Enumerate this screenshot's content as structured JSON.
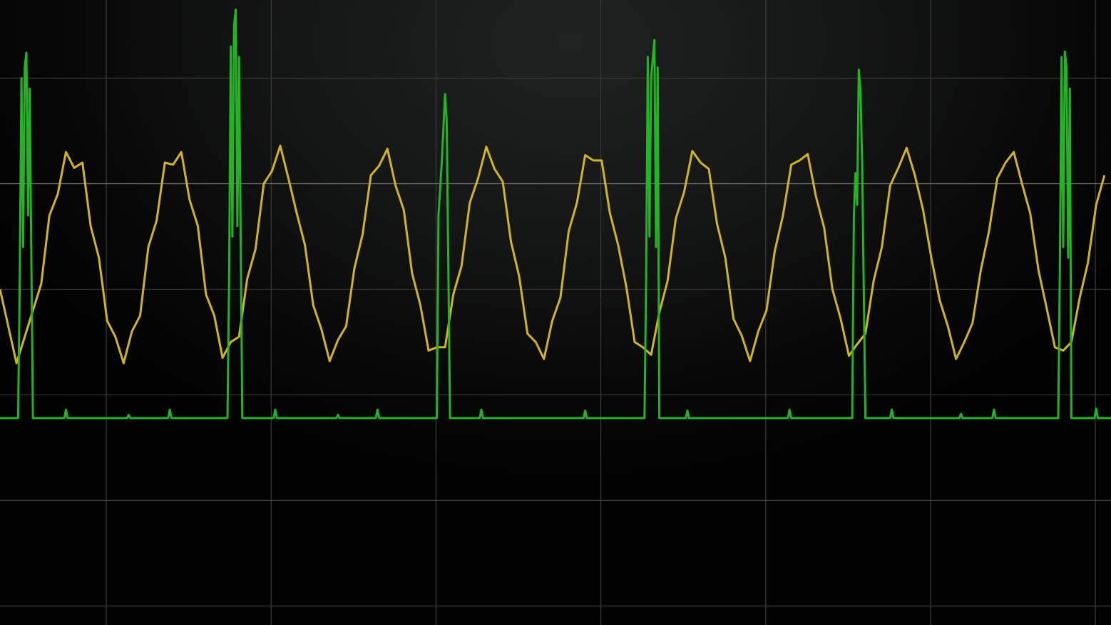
{
  "chart_data": {
    "type": "line",
    "title": "",
    "xlabel": "",
    "ylabel": "",
    "xlim": [
      0,
      6.74
    ],
    "ylim": [
      -4.18,
      1.74
    ],
    "grid": true,
    "background": "#141515",
    "grid_color": "#3a3a3a",
    "center_line_color": "#7a7a7a",
    "series": [
      {
        "color": "#d2b421",
        "x_start": 0,
        "x_step": 0.05,
        "values": [
          -1.0,
          -1.35,
          -1.7,
          -1.45,
          -1.2,
          -0.95,
          -0.3,
          -0.1,
          0.3,
          0.15,
          0.2,
          -0.4,
          -0.7,
          -1.3,
          -1.45,
          -1.7,
          -1.4,
          -1.25,
          -0.6,
          -0.35,
          0.2,
          0.18,
          0.3,
          -0.15,
          -0.4,
          -1.05,
          -1.25,
          -1.65,
          -1.5,
          -1.45,
          -0.9,
          -0.62,
          0.0,
          0.12,
          0.36,
          0.05,
          -0.28,
          -0.58,
          -1.15,
          -1.38,
          -1.68,
          -1.48,
          -1.35,
          -0.8,
          -0.48,
          0.08,
          0.17,
          0.33,
          -0.02,
          -0.25,
          -0.85,
          -1.15,
          -1.58,
          -1.55,
          -1.55,
          -1.05,
          -0.78,
          -0.18,
          0.05,
          0.35,
          0.14,
          0.02,
          -0.55,
          -0.88,
          -1.42,
          -1.5,
          -1.66,
          -1.3,
          -1.08,
          -0.45,
          -0.18,
          0.27,
          0.22,
          0.22,
          -0.28,
          -0.58,
          -0.98,
          -1.5,
          -1.55,
          -1.62,
          -1.22,
          -0.92,
          -0.33,
          -0.08,
          0.31,
          0.2,
          0.14,
          -0.38,
          -0.7,
          -1.28,
          -1.44,
          -1.68,
          -1.4,
          -1.2,
          -0.64,
          -0.3,
          0.18,
          0.22,
          0.28,
          -0.12,
          -0.42,
          -1.0,
          -1.28,
          -1.63,
          -1.52,
          -1.42,
          -0.92,
          -0.6,
          -0.02,
          0.15,
          0.34,
          0.08,
          -0.25,
          -0.7,
          -1.1,
          -1.35,
          -1.66,
          -1.5,
          -1.32,
          -0.82,
          -0.45,
          0.05,
          0.2,
          0.3,
          0.0,
          -0.28,
          -0.82,
          -1.18,
          -1.55,
          -1.58,
          -1.5,
          -1.08,
          -0.75,
          -0.2,
          0.08
        ]
      },
      {
        "color": "#22b422",
        "points": [
          [
            0,
            -2.22
          ],
          [
            0.11,
            -2.22
          ],
          [
            0.12,
            -0.9
          ],
          [
            0.13,
            1.0
          ],
          [
            0.14,
            -0.6
          ],
          [
            0.15,
            1.1
          ],
          [
            0.16,
            1.24
          ],
          [
            0.17,
            -0.3
          ],
          [
            0.18,
            0.9
          ],
          [
            0.2,
            -2.22
          ],
          [
            0.39,
            -2.22
          ],
          [
            0.4,
            -2.14
          ],
          [
            0.41,
            -2.22
          ],
          [
            0.77,
            -2.22
          ],
          [
            0.78,
            -2.19
          ],
          [
            0.79,
            -2.22
          ],
          [
            1.02,
            -2.22
          ],
          [
            1.03,
            -2.14
          ],
          [
            1.04,
            -2.22
          ],
          [
            1.38,
            -2.22
          ],
          [
            1.39,
            -0.9
          ],
          [
            1.4,
            1.3
          ],
          [
            1.41,
            -0.5
          ],
          [
            1.42,
            1.5
          ],
          [
            1.43,
            1.65
          ],
          [
            1.44,
            -0.4
          ],
          [
            1.45,
            1.2
          ],
          [
            1.47,
            -2.22
          ],
          [
            1.66,
            -2.22
          ],
          [
            1.67,
            -2.14
          ],
          [
            1.68,
            -2.22
          ],
          [
            2.04,
            -2.22
          ],
          [
            2.05,
            -2.19
          ],
          [
            2.06,
            -2.22
          ],
          [
            2.28,
            -2.22
          ],
          [
            2.29,
            -2.14
          ],
          [
            2.3,
            -2.22
          ],
          [
            2.65,
            -2.22
          ],
          [
            2.66,
            -0.3
          ],
          [
            2.68,
            0.2
          ],
          [
            2.7,
            0.85
          ],
          [
            2.71,
            0.6
          ],
          [
            2.73,
            -2.22
          ],
          [
            2.91,
            -2.22
          ],
          [
            2.92,
            -2.14
          ],
          [
            2.93,
            -2.22
          ],
          [
            3.54,
            -2.22
          ],
          [
            3.55,
            -2.15
          ],
          [
            3.56,
            -2.22
          ],
          [
            3.91,
            -2.22
          ],
          [
            3.92,
            -0.9
          ],
          [
            3.93,
            1.2
          ],
          [
            3.94,
            -0.5
          ],
          [
            3.95,
            1.0
          ],
          [
            3.97,
            1.36
          ],
          [
            3.98,
            -0.6
          ],
          [
            3.99,
            1.1
          ],
          [
            4.0,
            -2.22
          ],
          [
            4.16,
            -2.22
          ],
          [
            4.17,
            -2.15
          ],
          [
            4.18,
            -2.22
          ],
          [
            4.78,
            -2.22
          ],
          [
            4.79,
            -2.14
          ],
          [
            4.8,
            -2.22
          ],
          [
            5.17,
            -2.22
          ],
          [
            5.18,
            -0.3
          ],
          [
            5.19,
            0.1
          ],
          [
            5.2,
            -0.2
          ],
          [
            5.21,
            1.08
          ],
          [
            5.22,
            0.9
          ],
          [
            5.23,
            0.2
          ],
          [
            5.25,
            -2.22
          ],
          [
            5.4,
            -2.22
          ],
          [
            5.41,
            -2.14
          ],
          [
            5.42,
            -2.22
          ],
          [
            5.82,
            -2.22
          ],
          [
            5.83,
            -2.18
          ],
          [
            5.84,
            -2.22
          ],
          [
            6.02,
            -2.22
          ],
          [
            6.03,
            -2.14
          ],
          [
            6.04,
            -2.22
          ],
          [
            6.42,
            -2.22
          ],
          [
            6.43,
            -0.8
          ],
          [
            6.44,
            1.2
          ],
          [
            6.45,
            -0.6
          ],
          [
            6.46,
            1.25
          ],
          [
            6.47,
            1.1
          ],
          [
            6.48,
            -0.7
          ],
          [
            6.49,
            0.9
          ],
          [
            6.5,
            -2.22
          ],
          [
            6.64,
            -2.22
          ],
          [
            6.65,
            -2.13
          ],
          [
            6.66,
            -2.22
          ],
          [
            6.74,
            -2.22
          ]
        ]
      }
    ]
  }
}
